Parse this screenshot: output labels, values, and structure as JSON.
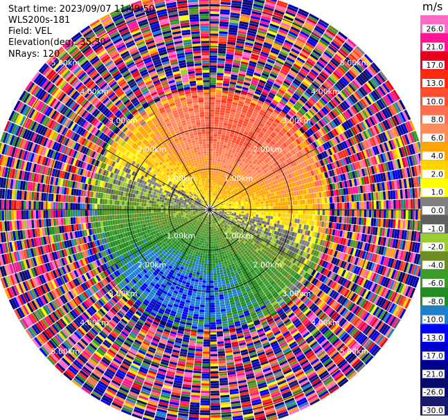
{
  "header": {
    "start_time": "Start time: 2023/09/07 11:49:50",
    "instrument": "WLS200s-181",
    "field": "Field: VEL",
    "elevation": "Elevation(deg): 35.30",
    "nrays": "NRays: 120"
  },
  "chart_data": {
    "type": "heatmap",
    "subtype": "radar-ppi",
    "field": "VEL",
    "units": "m/s",
    "n_rays": 120,
    "range_rings_km": [
      1.0,
      2.0,
      3.0,
      4.0,
      5.0
    ],
    "ring_labels": [
      "1.00km",
      "2.00km",
      "3.00km",
      "4.00km",
      "5.00km"
    ],
    "max_range_km": 5.4,
    "crosshair": true,
    "spokes_deg": [
      0,
      30,
      60,
      90,
      120,
      150,
      180,
      210,
      240,
      270,
      300,
      330
    ],
    "colorbar": {
      "ticks": [
        "26.0",
        "21.0",
        "17.0",
        "13.0",
        "10.0",
        "8.0",
        "6.0",
        "4.0",
        "2.0",
        "1.0",
        "0.0",
        "-1.0",
        "-2.0",
        "-4.0",
        "-6.0",
        "-8.0",
        "-10.0",
        "-13.0",
        "-17.0",
        "-21.0",
        "-26.0",
        "-30.0"
      ],
      "bins": [
        {
          "min": 26,
          "max": 30,
          "color": "#ff69c8"
        },
        {
          "min": 21,
          "max": 26,
          "color": "#ff1493"
        },
        {
          "min": 17,
          "max": 21,
          "color": "#e8001c"
        },
        {
          "min": 13,
          "max": 17,
          "color": "#ff2a10"
        },
        {
          "min": 10,
          "max": 13,
          "color": "#ff4d2e"
        },
        {
          "min": 8,
          "max": 10,
          "color": "#ff6e4f"
        },
        {
          "min": 6,
          "max": 8,
          "color": "#ff8c5a"
        },
        {
          "min": 4,
          "max": 6,
          "color": "#ffa500"
        },
        {
          "min": 2,
          "max": 4,
          "color": "#ffd400"
        },
        {
          "min": 1,
          "max": 2,
          "color": "#ffff00"
        },
        {
          "min": 0,
          "max": 1,
          "color": "#808080"
        },
        {
          "min": -1,
          "max": 0,
          "color": "#606060"
        },
        {
          "min": -2,
          "max": -1,
          "color": "#9acd32"
        },
        {
          "min": -4,
          "max": -2,
          "color": "#6b8e23"
        },
        {
          "min": -6,
          "max": -4,
          "color": "#3c9a2a"
        },
        {
          "min": -8,
          "max": -6,
          "color": "#228b22"
        },
        {
          "min": -10,
          "max": -8,
          "color": "#1e7fd0"
        },
        {
          "min": -13,
          "max": -10,
          "color": "#0000ff"
        },
        {
          "min": -17,
          "max": -13,
          "color": "#0000cd"
        },
        {
          "min": -21,
          "max": -17,
          "color": "#00008b"
        },
        {
          "min": -26,
          "max": -21,
          "color": "#0a0a6e"
        },
        {
          "min": -30,
          "max": -26,
          "color": "#191970"
        }
      ]
    },
    "velocity_pattern": {
      "description_free": true,
      "positive_azimuth_deg": 20,
      "peak_near_km": 1.8,
      "noise_beyond_km": 2.9
    }
  }
}
